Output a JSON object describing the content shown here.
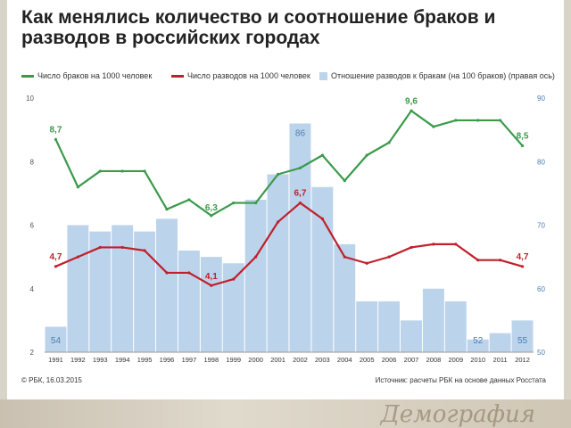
{
  "title": "Как менялись количество и соотношение браков и разводов в российских городах",
  "legend": {
    "marriages": "Число браков на 1000 человек",
    "divorces": "Число разводов на 1000 человек",
    "ratio": "Отношение разводов к бракам (на 100 браков) (правая ось)"
  },
  "footer": {
    "left": "© РБК, 16.03.2015",
    "right": "Источник: расчеты РБК на основе данных Росстата"
  },
  "decoration_text": "Демография",
  "colors": {
    "marriages": "#3a9a4a",
    "divorces": "#c0202a",
    "bars": "#bcd3ec",
    "axis_text": "#555555",
    "right_axis_text": "#4a7fb0"
  },
  "chart_data": {
    "type": "bar",
    "categories": [
      "1991",
      "1992",
      "1993",
      "1994",
      "1995",
      "1996",
      "1997",
      "1998",
      "1999",
      "2000",
      "2001",
      "2002",
      "2003",
      "2004",
      "2005",
      "2006",
      "2007",
      "2008",
      "2009",
      "2010",
      "2011",
      "2012"
    ],
    "left_axis": {
      "ylim": [
        2,
        10
      ],
      "ticks": [
        "2",
        "4",
        "6",
        "8",
        "10"
      ]
    },
    "right_axis": {
      "ylim": [
        50,
        90
      ],
      "ticks": [
        "50",
        "60",
        "70",
        "80",
        "90"
      ]
    },
    "bars": {
      "name": "Отношение разводов к бракам (на 100 браков) (правая ось)",
      "axis": "right",
      "values": [
        54,
        70,
        69,
        70,
        69,
        71,
        66,
        65,
        64,
        74,
        78,
        86,
        76,
        67,
        58,
        58,
        55,
        60,
        58,
        52,
        53,
        55
      ]
    },
    "series": [
      {
        "name": "Число браков на 1000 человек",
        "axis": "left",
        "type": "line",
        "values": [
          8.7,
          7.2,
          7.7,
          7.7,
          7.7,
          6.5,
          6.8,
          6.3,
          6.7,
          6.7,
          7.6,
          7.8,
          8.2,
          7.4,
          8.2,
          8.6,
          9.6,
          9.1,
          9.3,
          9.3,
          9.3,
          8.5
        ]
      },
      {
        "name": "Число разводов на 1000 человек",
        "axis": "left",
        "type": "line",
        "values": [
          4.7,
          5.0,
          5.3,
          5.3,
          5.2,
          4.5,
          4.5,
          4.1,
          4.3,
          5.0,
          6.1,
          6.7,
          6.2,
          5.0,
          4.8,
          5.0,
          5.3,
          5.4,
          5.4,
          4.9,
          4.9,
          4.7
        ]
      }
    ],
    "labels": [
      {
        "series": 0,
        "index": 0,
        "text": "8,7"
      },
      {
        "series": 0,
        "index": 7,
        "text": "6,3"
      },
      {
        "series": 0,
        "index": 16,
        "text": "9,6"
      },
      {
        "series": 0,
        "index": 21,
        "text": "8,5"
      },
      {
        "series": 1,
        "index": 0,
        "text": "4,7"
      },
      {
        "series": 1,
        "index": 7,
        "text": "4,1"
      },
      {
        "series": 1,
        "index": 11,
        "text": "6,7"
      },
      {
        "series": 1,
        "index": 21,
        "text": "4,7"
      }
    ],
    "bar_labels": [
      {
        "index": 0,
        "text": "54"
      },
      {
        "index": 11,
        "text": "86"
      },
      {
        "index": 19,
        "text": "52"
      },
      {
        "index": 21,
        "text": "55"
      }
    ]
  }
}
